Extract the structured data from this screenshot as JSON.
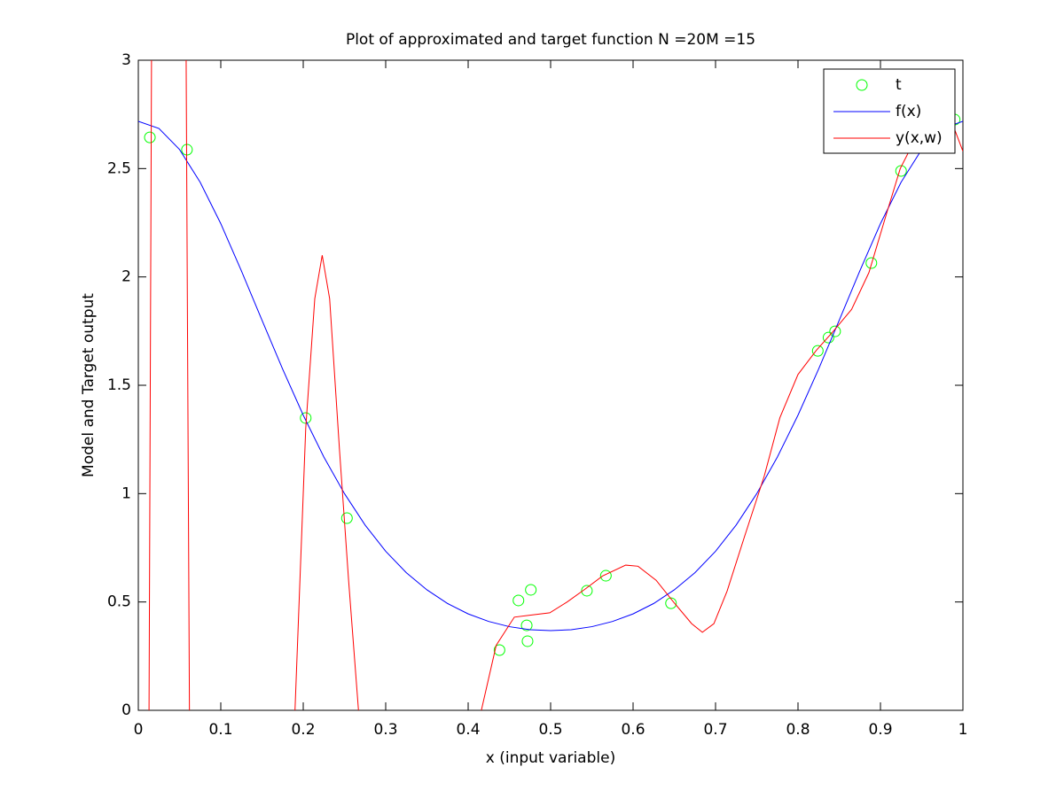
{
  "chart_data": {
    "type": "line",
    "title": "Plot of approximated and target function N =20M =15",
    "xlabel": "x (input variable)",
    "ylabel": "Model and Target output",
    "xlim": [
      0,
      1
    ],
    "ylim": [
      0,
      3
    ],
    "xticks": [
      0,
      0.1,
      0.2,
      0.3,
      0.4,
      0.5,
      0.6,
      0.7,
      0.8,
      0.9,
      1
    ],
    "yticks": [
      0,
      0.5,
      1,
      1.5,
      2,
      2.5,
      3
    ],
    "grid": false,
    "legend": "upper right",
    "series": [
      {
        "name": "t",
        "type": "scatter",
        "color": "#00ff00",
        "x": [
          0.014,
          0.059,
          0.203,
          0.253,
          0.438,
          0.461,
          0.471,
          0.472,
          0.476,
          0.544,
          0.567,
          0.646,
          0.824,
          0.837,
          0.845,
          0.889,
          0.925,
          0.99
        ],
        "values": [
          2.644,
          2.587,
          1.349,
          0.887,
          0.278,
          0.507,
          0.392,
          0.319,
          0.556,
          0.552,
          0.621,
          0.494,
          1.659,
          1.72,
          1.749,
          2.064,
          2.489,
          2.726
        ]
      },
      {
        "name": "f(x)",
        "type": "line",
        "color": "#0000ff",
        "x": [
          0,
          0.025,
          0.05,
          0.075,
          0.1,
          0.125,
          0.15,
          0.175,
          0.2,
          0.225,
          0.25,
          0.275,
          0.3,
          0.325,
          0.35,
          0.375,
          0.4,
          0.425,
          0.45,
          0.475,
          0.5,
          0.525,
          0.55,
          0.575,
          0.6,
          0.625,
          0.65,
          0.675,
          0.7,
          0.725,
          0.75,
          0.775,
          0.8,
          0.825,
          0.85,
          0.875,
          0.9,
          0.925,
          0.95,
          0.975,
          1
        ],
        "values": [
          2.718,
          2.685,
          2.588,
          2.437,
          2.246,
          2.028,
          1.8,
          1.575,
          1.362,
          1.169,
          1.0,
          0.855,
          0.734,
          0.635,
          0.556,
          0.493,
          0.445,
          0.41,
          0.386,
          0.372,
          0.368,
          0.372,
          0.386,
          0.41,
          0.445,
          0.493,
          0.556,
          0.635,
          0.734,
          0.855,
          1.0,
          1.169,
          1.362,
          1.575,
          1.8,
          2.028,
          2.246,
          2.437,
          2.588,
          2.685,
          2.718
        ]
      },
      {
        "name": "y(x,w)",
        "type": "line",
        "color": "#ff0000",
        "x": [
          0.013,
          0.016,
          0.037,
          0.058,
          0.062,
          0.126,
          0.19,
          0.203,
          0.214,
          0.223,
          0.232,
          0.244,
          0.255,
          0.267,
          0.34,
          0.416,
          0.434,
          0.456,
          0.477,
          0.499,
          0.52,
          0.542,
          0.563,
          0.591,
          0.606,
          0.628,
          0.649,
          0.671,
          0.684,
          0.698,
          0.714,
          0.735,
          0.759,
          0.778,
          0.8,
          0.822,
          0.843,
          0.865,
          0.886,
          0.908,
          0.924,
          0.94,
          0.961,
          0.972,
          0.988,
          1
        ],
        "values": [
          0,
          3,
          null,
          3,
          0,
          null,
          0,
          1.3,
          1.9,
          2.1,
          1.9,
          1.2,
          0.6,
          0,
          null,
          0,
          0.3,
          0.43,
          0.44,
          0.45,
          0.5,
          0.56,
          0.62,
          0.67,
          0.665,
          0.6,
          0.5,
          0.4,
          0.36,
          0.4,
          0.55,
          0.8,
          1.08,
          1.35,
          1.55,
          1.66,
          1.75,
          1.85,
          2.02,
          2.3,
          2.5,
          2.62,
          2.72,
          2.74,
          2.7,
          2.58
        ]
      }
    ]
  }
}
